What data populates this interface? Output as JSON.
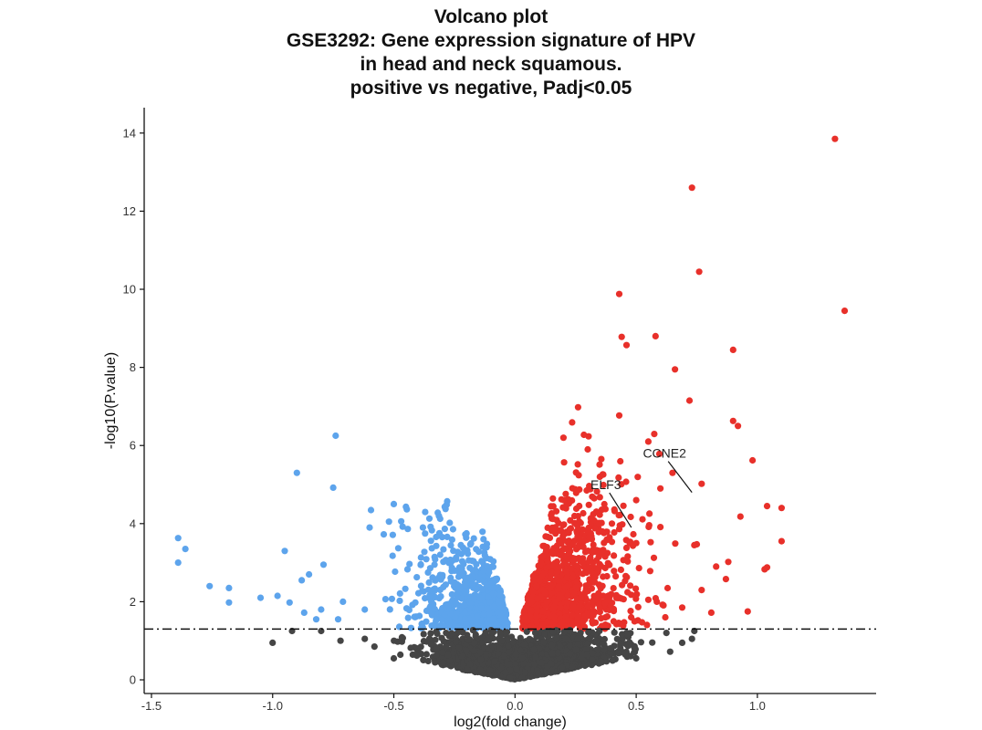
{
  "chart_data": {
    "type": "scatter",
    "title": [
      "Volcano plot",
      "GSE3292: Gene expression signature of HPV",
      "in head and neck squamous.",
      "positive vs negative, Padj<0.05"
    ],
    "xlabel": "log2(fold change)",
    "ylabel": "-log10(P.value)",
    "xlim": [
      -1.53,
      1.49
    ],
    "ylim": [
      -0.35,
      14.65
    ],
    "xticks": [
      -1.5,
      -1.0,
      -0.5,
      0.0,
      0.5,
      1.0
    ],
    "xtick_labels": [
      "-1.5",
      "-1.0",
      "-0.5",
      "0.0",
      "0.5",
      "1.0"
    ],
    "yticks": [
      0,
      2,
      4,
      6,
      8,
      10,
      12,
      14
    ],
    "ytick_labels": [
      "0",
      "2",
      "4",
      "6",
      "8",
      "10",
      "12",
      "14"
    ],
    "grid": false,
    "threshold_line": {
      "y": 1.3,
      "style": "dash-dot"
    },
    "colors": {
      "up": "#e8302a",
      "down": "#5da4ec",
      "ns": "#454545"
    },
    "series": [
      {
        "category": "up",
        "points": [
          [
            1.32,
            13.85
          ],
          [
            0.73,
            12.6
          ],
          [
            0.76,
            10.45
          ],
          [
            1.36,
            9.45
          ],
          [
            0.43,
            9.88
          ],
          [
            0.44,
            8.78
          ],
          [
            0.58,
            8.8
          ],
          [
            0.46,
            8.57
          ],
          [
            0.9,
            8.45
          ],
          [
            0.66,
            7.95
          ],
          [
            0.72,
            7.15
          ],
          [
            0.26,
            6.98
          ],
          [
            0.43,
            6.77
          ],
          [
            0.9,
            6.63
          ],
          [
            0.92,
            6.5
          ],
          [
            0.98,
            5.62
          ],
          [
            0.77,
            5.02
          ],
          [
            1.04,
            4.45
          ],
          [
            1.1,
            4.4
          ],
          [
            0.93,
            4.18
          ],
          [
            1.1,
            3.55
          ],
          [
            0.75,
            3.47
          ],
          [
            0.74,
            3.45
          ],
          [
            1.04,
            2.88
          ],
          [
            1.03,
            2.83
          ],
          [
            0.88,
            3.02
          ],
          [
            0.83,
            2.9
          ],
          [
            0.87,
            2.58
          ],
          [
            0.77,
            2.3
          ],
          [
            0.96,
            1.75
          ],
          [
            0.81,
            1.72
          ],
          [
            0.69,
            1.85
          ],
          [
            0.62,
            1.6
          ],
          [
            0.55,
            2.05
          ],
          [
            0.35,
            5.2
          ],
          [
            0.5,
            4.6
          ],
          [
            0.6,
            4.9
          ],
          [
            0.2,
            6.2
          ],
          [
            0.3,
            5.9
          ],
          [
            0.55,
            6.1
          ],
          [
            0.65,
            5.3
          ],
          [
            0.4,
            4.0
          ],
          [
            0.5,
            3.5
          ],
          [
            0.28,
            3.0
          ],
          [
            0.36,
            3.8
          ]
        ]
      },
      {
        "category": "down",
        "points": [
          [
            -0.74,
            6.25
          ],
          [
            -0.9,
            5.3
          ],
          [
            -0.75,
            4.92
          ],
          [
            -1.39,
            3.63
          ],
          [
            -1.36,
            3.35
          ],
          [
            -1.39,
            3.0
          ],
          [
            -0.28,
            4.57
          ],
          [
            -0.29,
            4.43
          ],
          [
            -0.5,
            4.5
          ],
          [
            -0.45,
            4.43
          ],
          [
            -0.85,
            2.7
          ],
          [
            -0.88,
            2.55
          ],
          [
            -0.79,
            2.95
          ],
          [
            -0.95,
            3.3
          ],
          [
            -1.26,
            2.4
          ],
          [
            -1.18,
            2.35
          ],
          [
            -1.18,
            1.98
          ],
          [
            -1.05,
            2.1
          ],
          [
            -0.98,
            2.15
          ],
          [
            -0.93,
            1.98
          ],
          [
            -0.87,
            1.72
          ],
          [
            -0.8,
            1.8
          ],
          [
            -0.82,
            1.55
          ],
          [
            -0.71,
            2.0
          ],
          [
            -0.73,
            1.55
          ],
          [
            -0.62,
            1.8
          ],
          [
            -0.6,
            3.9
          ],
          [
            -0.52,
            4.05
          ],
          [
            -0.38,
            3.9
          ],
          [
            -0.2,
            3.75
          ],
          [
            -0.13,
            3.6
          ],
          [
            -0.17,
            3.62
          ]
        ]
      },
      {
        "category": "ns",
        "points": [
          [
            -1.0,
            0.95
          ],
          [
            -0.92,
            1.25
          ],
          [
            -0.8,
            1.25
          ],
          [
            -0.72,
            1.0
          ],
          [
            -0.62,
            1.05
          ],
          [
            -0.58,
            0.85
          ],
          [
            0.73,
            1.05
          ],
          [
            0.69,
            0.95
          ],
          [
            0.74,
            1.25
          ],
          [
            0.64,
            0.72
          ],
          [
            0.5,
            0.55
          ],
          [
            -0.5,
            0.55
          ]
        ]
      }
    ],
    "density_clouds": [
      {
        "category": "up",
        "count": 1150,
        "x_range": [
          0.03,
          0.72
        ],
        "y_range": [
          1.3,
          6.9
        ]
      },
      {
        "category": "down",
        "count": 780,
        "x_range": [
          -0.65,
          -0.02
        ],
        "y_range": [
          1.3,
          4.6
        ]
      },
      {
        "category": "ns",
        "count": 1900,
        "x_range": [
          -0.6,
          0.72
        ],
        "y_range": [
          0.0,
          1.3
        ]
      }
    ],
    "annotations": [
      {
        "text": "CCNE2",
        "point": [
          0.73,
          4.8
        ]
      },
      {
        "text": "ELF3",
        "point": [
          0.48,
          3.9
        ]
      }
    ]
  }
}
